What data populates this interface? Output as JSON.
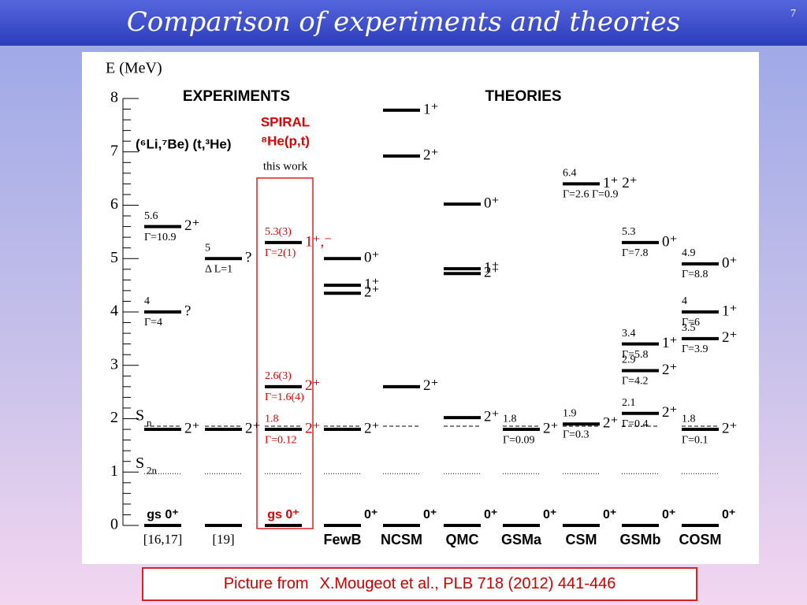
{
  "slide": {
    "title": "Comparison of experiments and theories",
    "number": "7"
  },
  "figure": {
    "axis_label": "E (MeV)",
    "ylim": [
      0,
      8
    ],
    "yticks": [
      0,
      1,
      2,
      3,
      4,
      5,
      6,
      7,
      8
    ],
    "headings": {
      "experiments": "EXPERIMENTS",
      "theories": "THEORIES",
      "spiral": "SPIRAL",
      "reaction": "⁸He(p,t)",
      "this_work": "this work",
      "transfer": "(⁶Li,⁷Be) (t,³He)"
    },
    "thresholds": [
      {
        "symbol": "S",
        "sub": "n",
        "energy": 1.86
      },
      {
        "symbol": "S",
        "sub": "2n",
        "energy": 0.97
      }
    ],
    "columns": [
      {
        "label": "[16,17]",
        "levels": [
          {
            "energy": 0,
            "spin": "gs 0⁺"
          },
          {
            "energy": 1.8,
            "spin": "2⁺"
          },
          {
            "energy": 4,
            "label": "4",
            "spin": "?",
            "width": "Γ=4"
          },
          {
            "energy": 5.6,
            "label": "5.6",
            "spin": "2⁺",
            "width": "Γ=10.9"
          }
        ]
      },
      {
        "label": "[19]",
        "levels": [
          {
            "energy": 0
          },
          {
            "energy": 1.8,
            "spin": "2⁺"
          },
          {
            "energy": 5,
            "label": "5",
            "spin": "?",
            "width": "Δ L=1"
          }
        ]
      },
      {
        "color": "#e00000",
        "levels": [
          {
            "energy": 0,
            "spin": "gs 0⁺"
          },
          {
            "energy": 1.8,
            "label": "1.8",
            "spin": "2⁺",
            "width": "Γ=0.12"
          },
          {
            "energy": 2.6,
            "label": "2.6(3)",
            "spin": "2⁺",
            "width": "Γ=1.6(4)"
          },
          {
            "energy": 5.3,
            "label": "5.3(3)",
            "spin": "1⁺,⁻",
            "width": "Γ=2(1)"
          }
        ]
      },
      {
        "label": "FewB",
        "levels": [
          {
            "energy": 0,
            "spin": "0⁺"
          },
          {
            "energy": 1.8,
            "spin": "2⁺"
          },
          {
            "energy": 4.35,
            "spin": "2⁺"
          },
          {
            "energy": 4.5,
            "spin": "1⁺"
          },
          {
            "energy": 5,
            "spin": "0⁺"
          }
        ]
      },
      {
        "label": "NCSM",
        "levels": [
          {
            "energy": 0,
            "spin": "0⁺"
          },
          {
            "energy": 2.6,
            "spin": "2⁺"
          },
          {
            "energy": 6.92,
            "spin": "2⁺"
          },
          {
            "energy": 7.78,
            "spin": "1⁺"
          }
        ]
      },
      {
        "label": "QMC",
        "levels": [
          {
            "energy": 0,
            "spin": "0⁺"
          },
          {
            "energy": 2.02,
            "spin": "2⁺"
          },
          {
            "energy": 4.72,
            "spin": "2⁺"
          },
          {
            "energy": 4.81,
            "spin": "1⁺"
          },
          {
            "energy": 6.02,
            "spin": "0⁺"
          }
        ]
      },
      {
        "label": "GSMa",
        "levels": [
          {
            "energy": 0,
            "spin": "0⁺"
          },
          {
            "energy": 1.8,
            "label": "1.8",
            "spin": "2⁺",
            "width": "Γ=0.09"
          }
        ]
      },
      {
        "label": "CSM",
        "levels": [
          {
            "energy": 0,
            "spin": "0⁺"
          },
          {
            "energy": 1.9,
            "label": "1.9",
            "spin": "2⁺",
            "width": "Γ=0.3"
          },
          {
            "energy": 6.4,
            "label": "6.4",
            "spin": "1⁺ 2⁺",
            "width": "Γ=2.6 Γ=0.9"
          }
        ]
      },
      {
        "label": "GSMb",
        "levels": [
          {
            "energy": 0,
            "spin": "0⁺"
          },
          {
            "energy": 2.1,
            "label": "2.1",
            "spin": "2⁺",
            "width": "Γ=0.4"
          },
          {
            "energy": 2.9,
            "label": "2.9",
            "spin": "2⁺",
            "width": "Γ=4.2"
          },
          {
            "energy": 3.4,
            "label": "3.4",
            "spin": "1⁺",
            "width": "Γ=5.8"
          },
          {
            "energy": 5.3,
            "label": "5.3",
            "spin": "0⁺",
            "width": "Γ=7.8"
          }
        ]
      },
      {
        "label": "COSM",
        "levels": [
          {
            "energy": 0,
            "spin": "0⁺"
          },
          {
            "energy": 1.8,
            "label": "1.8",
            "spin": "2⁺",
            "width": "Γ=0.1"
          },
          {
            "energy": 3.5,
            "label": "3.5",
            "spin": "2⁺",
            "width": "Γ=3.9"
          },
          {
            "energy": 4,
            "label": "4",
            "spin": "1⁺",
            "width": "Γ=6"
          },
          {
            "energy": 4.9,
            "label": "4.9",
            "spin": "0⁺",
            "width": "Γ=8.8"
          }
        ]
      }
    ]
  },
  "footer": {
    "prefix": "Picture from",
    "source": "X.Mougeot et al., PLB 718 (2012) 441-446"
  }
}
